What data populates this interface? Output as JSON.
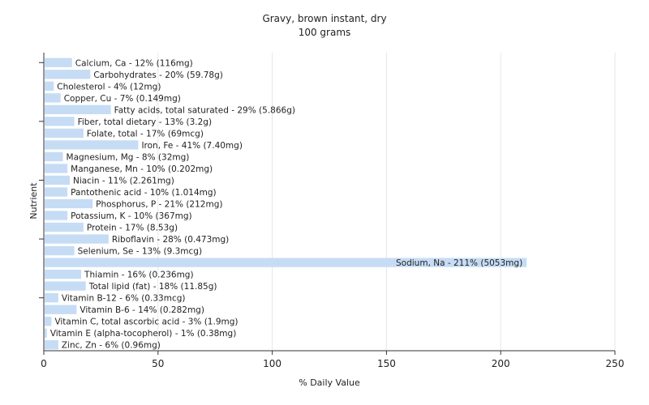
{
  "chart_data": {
    "type": "bar",
    "orientation": "horizontal",
    "title": "Gravy, brown instant, dry",
    "subtitle": "100 grams",
    "xlabel": "% Daily Value",
    "ylabel": "Nutrient",
    "xlim": [
      0,
      250
    ],
    "xticks": [
      0,
      50,
      100,
      150,
      200,
      250
    ],
    "grid": true,
    "bar_color": "#c6dcf5",
    "categories": [
      "Calcium, Ca",
      "Carbohydrates",
      "Cholesterol",
      "Copper, Cu",
      "Fatty acids, total saturated",
      "Fiber, total dietary",
      "Folate, total",
      "Iron, Fe",
      "Magnesium, Mg",
      "Manganese, Mn",
      "Niacin",
      "Pantothenic acid",
      "Phosphorus, P",
      "Potassium, K",
      "Protein",
      "Riboflavin",
      "Selenium, Se",
      "Sodium, Na",
      "Thiamin",
      "Total lipid (fat)",
      "Vitamin B-12",
      "Vitamin B-6",
      "Vitamin C, total ascorbic acid",
      "Vitamin E (alpha-tocopherol)",
      "Zinc, Zn"
    ],
    "values": [
      12,
      20,
      4,
      7,
      29,
      13,
      17,
      41,
      8,
      10,
      11,
      10,
      21,
      10,
      17,
      28,
      13,
      211,
      16,
      18,
      6,
      14,
      3,
      1,
      6
    ],
    "labels": [
      "Calcium, Ca - 12% (116mg)",
      "Carbohydrates - 20% (59.78g)",
      "Cholesterol - 4% (12mg)",
      "Copper, Cu - 7% (0.149mg)",
      "Fatty acids, total saturated - 29% (5.866g)",
      "Fiber, total dietary - 13% (3.2g)",
      "Folate, total - 17% (69mcg)",
      "Iron, Fe - 41% (7.40mg)",
      "Magnesium, Mg - 8% (32mg)",
      "Manganese, Mn - 10% (0.202mg)",
      "Niacin - 11% (2.261mg)",
      "Pantothenic acid - 10% (1.014mg)",
      "Phosphorus, P - 21% (212mg)",
      "Potassium, K - 10% (367mg)",
      "Protein - 17% (8.53g)",
      "Riboflavin - 28% (0.473mg)",
      "Selenium, Se - 13% (9.3mcg)",
      "Sodium, Na - 211% (5053mg)",
      "Thiamin - 16% (0.236mg)",
      "Total lipid (fat) - 18% (11.85g)",
      "Vitamin B-12 - 6% (0.33mcg)",
      "Vitamin B-6 - 14% (0.282mg)",
      "Vitamin C, total ascorbic acid - 3% (1.9mg)",
      "Vitamin E (alpha-tocopherol) - 1% (0.38mg)",
      "Zinc, Zn - 6% (0.96mg)"
    ]
  }
}
